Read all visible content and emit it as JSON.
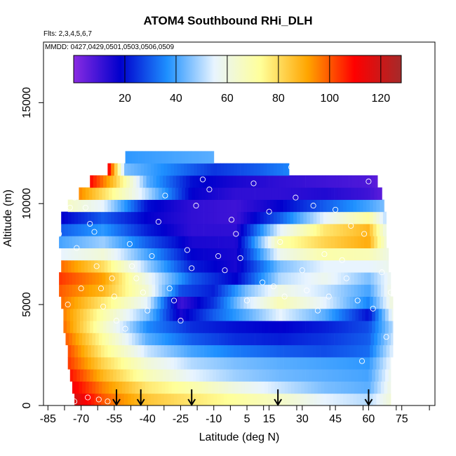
{
  "chart_data": {
    "type": "heatmap",
    "title": "ATOM4 Southbound RHi_DLH",
    "flights_note": "Flts: 2,3,4,5,6,7",
    "dates_note": "MMDD: 0427,0429,0501,0503,0506,0509",
    "xlabel": "Latitude (deg N)",
    "ylabel": "Altitude (m)",
    "xlim": [
      -87,
      90
    ],
    "ylim": [
      0,
      18000
    ],
    "x_ticks": [
      -85,
      -70,
      -55,
      -40,
      -25,
      -10,
      5,
      15,
      30,
      45,
      60,
      75
    ],
    "y_ticks": [
      0,
      5000,
      10000,
      15000
    ],
    "colorbar": {
      "range": [
        0,
        128
      ],
      "ticks": [
        20,
        40,
        60,
        80,
        100,
        120
      ],
      "colors": [
        "#8a2be2",
        "#0000cd",
        "#1e90ff",
        "#e8f4ff",
        "#ffff99",
        "#ffa500",
        "#ff0000",
        "#a52a2a"
      ]
    },
    "arrows_at_latitude": [
      -54,
      -43,
      -20,
      19,
      60
    ],
    "grid": false,
    "heat_rows": [
      {
        "alt_top": 600,
        "lat_min": -73,
        "lat_max": 70,
        "values": [
          [
            -73,
            118
          ],
          [
            -60,
            100
          ],
          [
            -40,
            85
          ],
          [
            -20,
            78
          ],
          [
            0,
            72
          ],
          [
            20,
            65
          ],
          [
            40,
            55
          ],
          [
            60,
            50
          ],
          [
            70,
            62
          ]
        ]
      },
      {
        "alt_top": 1200,
        "lat_min": -74,
        "lat_max": 70,
        "values": [
          [
            -74,
            112
          ],
          [
            -60,
            95
          ],
          [
            -40,
            78
          ],
          [
            -20,
            70
          ],
          [
            0,
            60
          ],
          [
            20,
            52
          ],
          [
            40,
            45
          ],
          [
            60,
            42
          ],
          [
            70,
            60
          ]
        ]
      },
      {
        "alt_top": 1800,
        "lat_min": -75,
        "lat_max": 70,
        "values": [
          [
            -75,
            108
          ],
          [
            -60,
            88
          ],
          [
            -40,
            68
          ],
          [
            -20,
            55
          ],
          [
            0,
            48
          ],
          [
            20,
            44
          ],
          [
            40,
            42
          ],
          [
            60,
            40
          ],
          [
            70,
            58
          ]
        ]
      },
      {
        "alt_top": 2400,
        "lat_min": -76,
        "lat_max": 70,
        "values": [
          [
            -76,
            104
          ],
          [
            -60,
            82
          ],
          [
            -40,
            62
          ],
          [
            -20,
            50
          ],
          [
            0,
            45
          ],
          [
            20,
            42
          ],
          [
            40,
            40
          ],
          [
            60,
            38
          ],
          [
            70,
            56
          ]
        ]
      },
      {
        "alt_top": 3000,
        "lat_min": -76,
        "lat_max": 71,
        "values": [
          [
            -76,
            102
          ],
          [
            -60,
            76
          ],
          [
            -40,
            52
          ],
          [
            -20,
            40
          ],
          [
            0,
            34
          ],
          [
            20,
            30
          ],
          [
            40,
            28
          ],
          [
            60,
            32
          ],
          [
            71,
            55
          ]
        ]
      },
      {
        "alt_top": 3600,
        "lat_min": -77,
        "lat_max": 71,
        "values": [
          [
            -77,
            100
          ],
          [
            -60,
            72
          ],
          [
            -40,
            42
          ],
          [
            -20,
            30
          ],
          [
            0,
            24
          ],
          [
            20,
            22
          ],
          [
            40,
            25
          ],
          [
            60,
            30
          ],
          [
            71,
            52
          ]
        ]
      },
      {
        "alt_top": 4200,
        "lat_min": -78,
        "lat_max": 71,
        "values": [
          [
            -78,
            98
          ],
          [
            -60,
            66
          ],
          [
            -40,
            36
          ],
          [
            -20,
            24
          ],
          [
            0,
            20
          ],
          [
            20,
            18
          ],
          [
            40,
            22
          ],
          [
            60,
            28
          ],
          [
            71,
            50
          ]
        ]
      },
      {
        "alt_top": 4800,
        "lat_min": -78,
        "lat_max": 71,
        "values": [
          [
            -78,
            96
          ],
          [
            -60,
            70
          ],
          [
            -40,
            45
          ],
          [
            -25,
            15
          ],
          [
            -10,
            30
          ],
          [
            5,
            42
          ],
          [
            20,
            55
          ],
          [
            40,
            42
          ],
          [
            60,
            20
          ],
          [
            71,
            58
          ]
        ]
      },
      {
        "alt_top": 5400,
        "lat_min": -79,
        "lat_max": 71,
        "values": [
          [
            -79,
            98
          ],
          [
            -60,
            78
          ],
          [
            -40,
            55
          ],
          [
            -25,
            10
          ],
          [
            -10,
            25
          ],
          [
            5,
            52
          ],
          [
            20,
            68
          ],
          [
            40,
            55
          ],
          [
            60,
            35
          ],
          [
            71,
            62
          ]
        ]
      },
      {
        "alt_top": 6000,
        "lat_min": -80,
        "lat_max": 70,
        "values": [
          [
            -80,
            100
          ],
          [
            -60,
            88
          ],
          [
            -40,
            62
          ],
          [
            -25,
            28
          ],
          [
            -10,
            22
          ],
          [
            5,
            45
          ],
          [
            20,
            60
          ],
          [
            40,
            52
          ],
          [
            60,
            40
          ],
          [
            70,
            60
          ]
        ]
      },
      {
        "alt_top": 6600,
        "lat_min": -80,
        "lat_max": 70,
        "values": [
          [
            -80,
            104
          ],
          [
            -60,
            92
          ],
          [
            -40,
            58
          ],
          [
            -20,
            30
          ],
          [
            0,
            18
          ],
          [
            20,
            50
          ],
          [
            40,
            58
          ],
          [
            60,
            45
          ],
          [
            70,
            58
          ]
        ]
      },
      {
        "alt_top": 7200,
        "lat_min": -79,
        "lat_max": 69,
        "values": [
          [
            -79,
            98
          ],
          [
            -60,
            80
          ],
          [
            -40,
            48
          ],
          [
            -20,
            22
          ],
          [
            0,
            15
          ],
          [
            20,
            45
          ],
          [
            40,
            55
          ],
          [
            60,
            55
          ],
          [
            69,
            58
          ]
        ]
      },
      {
        "alt_top": 7800,
        "lat_min": -79,
        "lat_max": 69,
        "values": [
          [
            -79,
            55
          ],
          [
            -60,
            62
          ],
          [
            -40,
            40
          ],
          [
            -20,
            18
          ],
          [
            0,
            15
          ],
          [
            20,
            58
          ],
          [
            40,
            70
          ],
          [
            60,
            68
          ],
          [
            69,
            60
          ]
        ]
      },
      {
        "alt_top": 8400,
        "lat_min": -80,
        "lat_max": 68,
        "values": [
          [
            -80,
            40
          ],
          [
            -60,
            48
          ],
          [
            -40,
            30
          ],
          [
            -20,
            15
          ],
          [
            0,
            14
          ],
          [
            20,
            70
          ],
          [
            40,
            82
          ],
          [
            60,
            90
          ],
          [
            68,
            62
          ]
        ]
      },
      {
        "alt_top": 9000,
        "lat_min": -79,
        "lat_max": 68,
        "values": [
          [
            -79,
            30
          ],
          [
            -60,
            38
          ],
          [
            -40,
            22
          ],
          [
            -20,
            12
          ],
          [
            0,
            12
          ],
          [
            20,
            55
          ],
          [
            40,
            78
          ],
          [
            60,
            88
          ],
          [
            68,
            58
          ]
        ]
      },
      {
        "alt_top": 9600,
        "lat_min": -79,
        "lat_max": 68,
        "values": [
          [
            -79,
            18
          ],
          [
            -60,
            30
          ],
          [
            -40,
            18
          ],
          [
            -20,
            12
          ],
          [
            0,
            10
          ],
          [
            20,
            30
          ],
          [
            40,
            55
          ],
          [
            60,
            72
          ],
          [
            68,
            50
          ]
        ]
      },
      {
        "alt_top": 10200,
        "lat_min": -76,
        "lat_max": 67,
        "values": [
          [
            -76,
            65
          ],
          [
            -60,
            55
          ],
          [
            -40,
            20
          ],
          [
            -20,
            12
          ],
          [
            0,
            10
          ],
          [
            20,
            18
          ],
          [
            40,
            30
          ],
          [
            60,
            40
          ],
          [
            67,
            45
          ]
        ]
      },
      {
        "alt_top": 10800,
        "lat_min": -71,
        "lat_max": 66,
        "values": [
          [
            -71,
            95
          ],
          [
            -60,
            80
          ],
          [
            -40,
            50
          ],
          [
            -20,
            18
          ],
          [
            0,
            12
          ],
          [
            20,
            12
          ],
          [
            40,
            14
          ],
          [
            60,
            10
          ],
          [
            66,
            6
          ]
        ]
      },
      {
        "alt_top": 11400,
        "lat_min": -66,
        "lat_max": 64,
        "values": [
          [
            -66,
            110
          ],
          [
            -55,
            85
          ],
          [
            -40,
            42
          ],
          [
            -20,
            20
          ],
          [
            0,
            15
          ],
          [
            20,
            12
          ],
          [
            40,
            10
          ],
          [
            60,
            8
          ],
          [
            64,
            6
          ]
        ]
      },
      {
        "alt_top": 12000,
        "lat_min": -58,
        "lat_max": 24,
        "values": [
          [
            -58,
            115
          ],
          [
            -50,
            45
          ],
          [
            -30,
            35
          ],
          [
            -10,
            25
          ],
          [
            10,
            30
          ],
          [
            24,
            35
          ]
        ]
      },
      {
        "alt_top": 12600,
        "lat_min": -50,
        "lat_max": -10,
        "values": [
          [
            -50,
            38
          ],
          [
            -30,
            40
          ],
          [
            -10,
            42
          ]
        ]
      }
    ],
    "points": [
      [
        -88,
        6300
      ],
      [
        -83,
        9600
      ],
      [
        -84,
        4500
      ],
      [
        -80,
        8500
      ],
      [
        -75,
        9800
      ],
      [
        -73,
        10300
      ],
      [
        -72,
        7800
      ],
      [
        -68,
        9800
      ],
      [
        -66,
        9000
      ],
      [
        -63,
        6900
      ],
      [
        -61,
        5800
      ],
      [
        -60,
        4900
      ],
      [
        -56,
        6300
      ],
      [
        -55,
        5400
      ],
      [
        -54,
        4200
      ],
      [
        -48,
        8000
      ],
      [
        -47,
        6900
      ],
      [
        -45,
        6300
      ],
      [
        -42,
        5600
      ],
      [
        -40,
        4700
      ],
      [
        -38,
        7400
      ],
      [
        -35,
        9100
      ],
      [
        -32,
        10400
      ],
      [
        -30,
        5800
      ],
      [
        -28,
        5200
      ],
      [
        -25,
        4200
      ],
      [
        -22,
        7700
      ],
      [
        -20,
        6800
      ],
      [
        -18,
        9900
      ],
      [
        -15,
        11200
      ],
      [
        -12,
        10700
      ],
      [
        -8,
        7400
      ],
      [
        -5,
        6700
      ],
      [
        -2,
        9200
      ],
      [
        0,
        8500
      ],
      [
        2,
        7300
      ],
      [
        5,
        5200
      ],
      [
        8,
        11000
      ],
      [
        12,
        6100
      ],
      [
        15,
        9600
      ],
      [
        17,
        5900
      ],
      [
        20,
        8100
      ],
      [
        22,
        5400
      ],
      [
        25,
        11800
      ],
      [
        27,
        10300
      ],
      [
        30,
        6700
      ],
      [
        32,
        5700
      ],
      [
        35,
        9900
      ],
      [
        37,
        4700
      ],
      [
        40,
        7500
      ],
      [
        42,
        5400
      ],
      [
        45,
        9700
      ],
      [
        48,
        7200
      ],
      [
        50,
        6300
      ],
      [
        52,
        8900
      ],
      [
        55,
        5200
      ],
      [
        57,
        2200
      ],
      [
        58,
        8500
      ],
      [
        60,
        11100
      ],
      [
        62,
        4800
      ],
      [
        66,
        6600
      ],
      [
        68,
        3400
      ],
      [
        70,
        5600
      ],
      [
        -79,
        200
      ],
      [
        -73,
        200
      ],
      [
        -67,
        400
      ],
      [
        -62,
        300
      ],
      [
        -58,
        200
      ],
      [
        -70,
        5800
      ],
      [
        -76,
        5000
      ],
      [
        -64,
        8600
      ],
      [
        -50,
        3800
      ]
    ]
  }
}
